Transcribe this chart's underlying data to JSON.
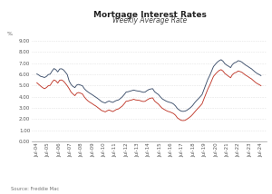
{
  "title": "Mortgage Interest Rates",
  "subtitle": "Weekly Average Rate",
  "ylabel": "%",
  "source": "Source: Freddie Mac",
  "ylim": [
    0.0,
    9.0
  ],
  "yticks": [
    0.0,
    1.0,
    2.0,
    3.0,
    4.0,
    5.0,
    6.0,
    7.0,
    8.0,
    9.0
  ],
  "xtick_labels": [
    "Jul-04",
    "Jul-05",
    "Jul-06",
    "Jul-07",
    "Jul-08",
    "Jul-09",
    "Jul-10",
    "Jul-11",
    "Jul-12",
    "Jul-13",
    "Jul-14",
    "Jul-15",
    "Jul-16",
    "Jul-17",
    "Jul-18",
    "Jul-19",
    "Jul-20",
    "Jul-21",
    "Jul-22",
    "Jul-23",
    "Jul-24"
  ],
  "color_30yr": "#3d4f6b",
  "color_15yr": "#c0392b",
  "rate_30yr": [
    6.04,
    5.94,
    5.82,
    5.78,
    5.72,
    5.81,
    5.98,
    6.02,
    6.3,
    6.52,
    6.42,
    6.22,
    6.48,
    6.5,
    6.4,
    6.2,
    5.98,
    5.4,
    5.1,
    4.92,
    4.82,
    5.05,
    5.1,
    5.04,
    4.98,
    4.72,
    4.55,
    4.42,
    4.3,
    4.2,
    4.08,
    3.97,
    3.85,
    3.72,
    3.58,
    3.5,
    3.45,
    3.55,
    3.62,
    3.55,
    3.5,
    3.6,
    3.68,
    3.72,
    3.85,
    4.0,
    4.2,
    4.42,
    4.45,
    4.5,
    4.55,
    4.6,
    4.55,
    4.52,
    4.5,
    4.45,
    4.4,
    4.42,
    4.55,
    4.65,
    4.7,
    4.72,
    4.45,
    4.32,
    4.2,
    4.0,
    3.82,
    3.72,
    3.62,
    3.55,
    3.5,
    3.45,
    3.35,
    3.18,
    2.95,
    2.82,
    2.72,
    2.7,
    2.72,
    2.8,
    2.92,
    3.05,
    3.22,
    3.45,
    3.65,
    3.82,
    4.0,
    4.2,
    4.65,
    5.1,
    5.55,
    5.89,
    6.29,
    6.7,
    6.9,
    7.09,
    7.22,
    7.31,
    7.18,
    6.95,
    6.82,
    6.72,
    6.6,
    6.88,
    7.03,
    7.09,
    7.22,
    7.18,
    7.09,
    6.95,
    6.82,
    6.72,
    6.6,
    6.5,
    6.35,
    6.2,
    6.08,
    5.99,
    5.89
  ],
  "rate_15yr": [
    5.25,
    5.1,
    4.95,
    4.82,
    4.72,
    4.82,
    4.98,
    5.02,
    5.3,
    5.5,
    5.42,
    5.22,
    5.48,
    5.5,
    5.4,
    5.2,
    4.98,
    4.72,
    4.42,
    4.25,
    4.1,
    4.32,
    4.38,
    4.32,
    4.25,
    3.98,
    3.78,
    3.62,
    3.5,
    3.4,
    3.28,
    3.18,
    3.05,
    2.92,
    2.78,
    2.72,
    2.65,
    2.75,
    2.82,
    2.75,
    2.68,
    2.78,
    2.88,
    2.92,
    3.05,
    3.18,
    3.38,
    3.6,
    3.62,
    3.68,
    3.72,
    3.78,
    3.72,
    3.7,
    3.68,
    3.62,
    3.58,
    3.6,
    3.72,
    3.82,
    3.88,
    3.9,
    3.62,
    3.48,
    3.35,
    3.15,
    2.98,
    2.88,
    2.78,
    2.7,
    2.65,
    2.58,
    2.5,
    2.35,
    2.12,
    2.0,
    1.9,
    1.88,
    1.9,
    2.0,
    2.12,
    2.25,
    2.42,
    2.62,
    2.82,
    3.0,
    3.18,
    3.38,
    3.82,
    4.25,
    4.68,
    5.02,
    5.42,
    5.82,
    6.02,
    6.2,
    6.35,
    6.42,
    6.3,
    6.08,
    5.95,
    5.82,
    5.7,
    5.98,
    6.12,
    6.18,
    6.3,
    6.25,
    6.18,
    6.05,
    5.92,
    5.82,
    5.7,
    5.6,
    5.45,
    5.3,
    5.18,
    5.09,
    4.99
  ],
  "background_color": "#ffffff",
  "grid_color": "#c8c8c8",
  "title_fontsize": 6.5,
  "tick_fontsize": 4.0,
  "label_fontsize": 4.5,
  "legend_fontsize": 4.5,
  "source_fontsize": 3.8
}
